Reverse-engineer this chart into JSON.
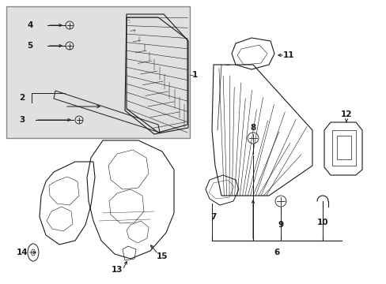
{
  "bg_color": "#ffffff",
  "line_color": "#1a1a1a",
  "inset_bg": "#e0e0e0",
  "inset_border": "#888888",
  "fig_w": 4.89,
  "fig_h": 3.6,
  "dpi": 100
}
